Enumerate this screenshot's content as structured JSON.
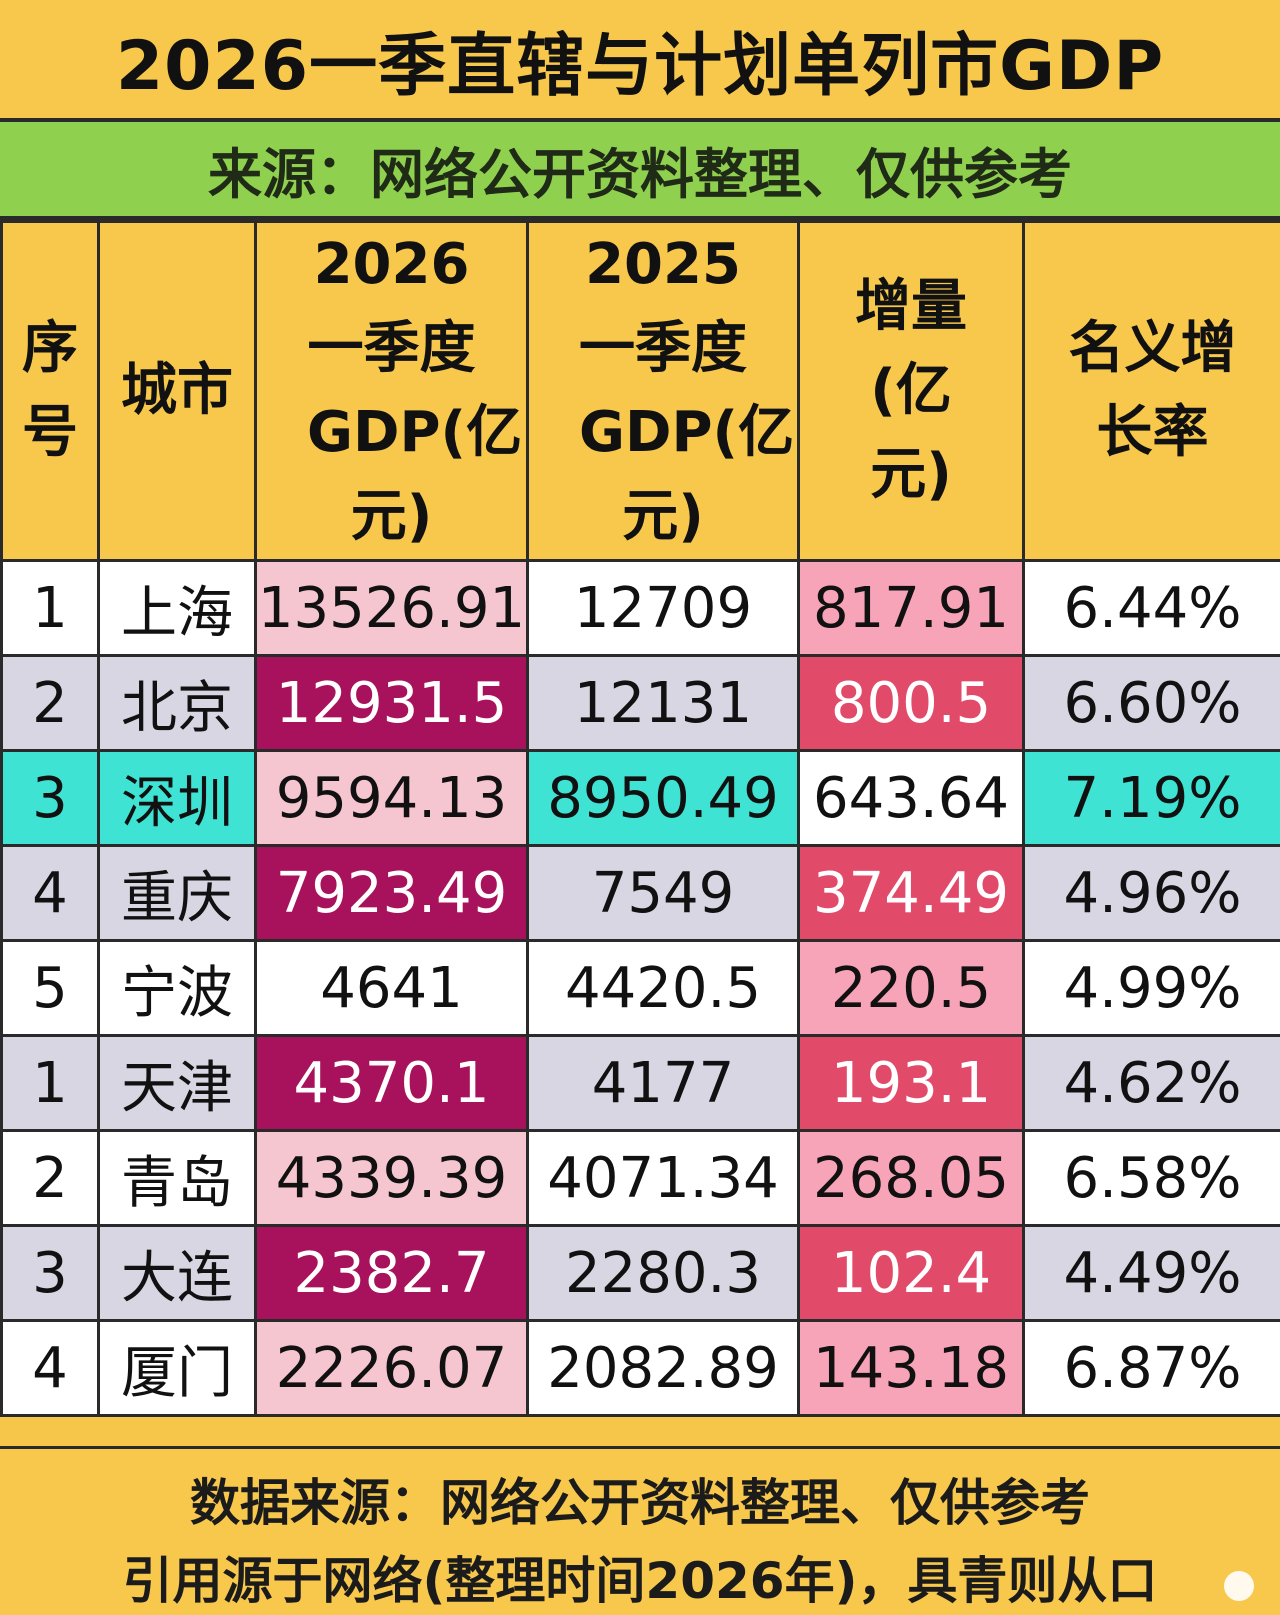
{
  "title": "2026一季直辖与计划单列市GDP",
  "source_note": "来源：网络公开资料整理、仅供参考",
  "headers": {
    "idx": "序号",
    "city": "城市",
    "gdp2026": "2026一季度GDP(亿元)",
    "gdp2025": "2025一季度GDP(亿元)",
    "increase": "增量(亿元)",
    "growth": "名义增长率"
  },
  "colors": {
    "header_bg": "#f7c84b",
    "source_bg": "#8fd14f",
    "highlight_magenta": "#a8115b",
    "highlight_red": "#e24a6a",
    "highlight_teal": "#3fe3d4"
  },
  "chart_data": {
    "type": "table",
    "columns": [
      "序号",
      "城市",
      "2026一季度GDP(亿元)",
      "2025一季度GDP(亿元)",
      "增量(亿元)",
      "名义增长率"
    ],
    "rows": [
      {
        "idx": "1",
        "city": "上海",
        "gdp2026": "13526.91",
        "gdp2025": "12709",
        "increase": "817.91",
        "growth": "6.44%"
      },
      {
        "idx": "2",
        "city": "北京",
        "gdp2026": "12931.5",
        "gdp2025": "12131",
        "increase": "800.5",
        "growth": "6.60%"
      },
      {
        "idx": "3",
        "city": "深圳",
        "gdp2026": "9594.13",
        "gdp2025": "8950.49",
        "increase": "643.64",
        "growth": "7.19%"
      },
      {
        "idx": "4",
        "city": "重庆",
        "gdp2026": "7923.49",
        "gdp2025": "7549",
        "increase": "374.49",
        "growth": "4.96%"
      },
      {
        "idx": "5",
        "city": "宁波",
        "gdp2026": "4641",
        "gdp2025": "4420.5",
        "increase": "220.5",
        "growth": "4.99%"
      },
      {
        "idx": "1",
        "city": "天津",
        "gdp2026": "4370.1",
        "gdp2025": "4177",
        "increase": "193.1",
        "growth": "4.62%"
      },
      {
        "idx": "2",
        "city": "青岛",
        "gdp2026": "4339.39",
        "gdp2025": "4071.34",
        "increase": "268.05",
        "growth": "6.58%"
      },
      {
        "idx": "3",
        "city": "大连",
        "gdp2026": "2382.7",
        "gdp2025": "2280.3",
        "increase": "102.4",
        "growth": "4.49%"
      },
      {
        "idx": "4",
        "city": "厦门",
        "gdp2026": "2226.07",
        "gdp2025": "2082.89",
        "increase": "143.18",
        "growth": "6.87%"
      }
    ]
  },
  "footer": {
    "line1": "数据来源：网络公开资料整理、仅供参考",
    "line2": "引用源于网络(整理时间2026年)，具青则从口"
  }
}
